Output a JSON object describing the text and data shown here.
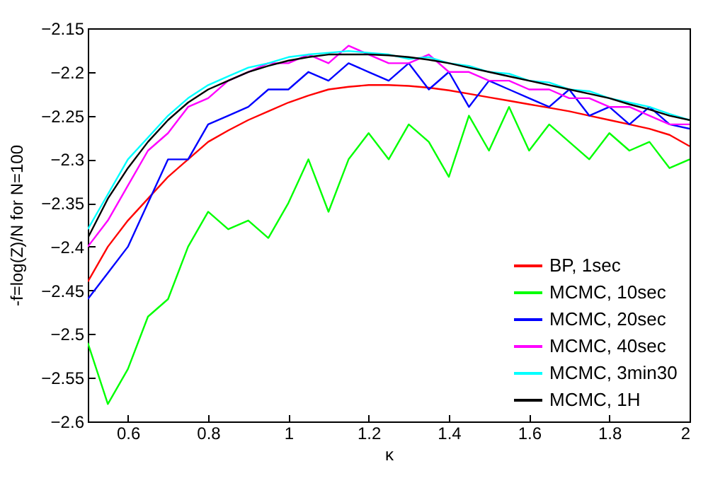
{
  "chart_data": {
    "type": "line",
    "xlabel": "κ",
    "ylabel": "-f=log(Z)/N for N=100",
    "x": [
      0.5,
      0.55,
      0.6,
      0.65,
      0.7,
      0.75,
      0.8,
      0.85,
      0.9,
      0.95,
      1.0,
      1.05,
      1.1,
      1.15,
      1.2,
      1.25,
      1.3,
      1.35,
      1.4,
      1.45,
      1.5,
      1.55,
      1.6,
      1.65,
      1.7,
      1.75,
      1.8,
      1.85,
      1.9,
      1.95,
      2.0
    ],
    "series": [
      {
        "name": "BP, 1sec",
        "color": "#ff0000",
        "values": [
          -2.44,
          -2.4,
          -2.37,
          -2.345,
          -2.32,
          -2.3,
          -2.28,
          -2.267,
          -2.255,
          -2.245,
          -2.235,
          -2.227,
          -2.22,
          -2.217,
          -2.215,
          -2.215,
          -2.216,
          -2.218,
          -2.221,
          -2.225,
          -2.229,
          -2.233,
          -2.237,
          -2.241,
          -2.245,
          -2.25,
          -2.255,
          -2.26,
          -2.265,
          -2.272,
          -2.285
        ]
      },
      {
        "name": "MCMC, 10sec",
        "color": "#00ff00",
        "values": [
          -2.51,
          -2.58,
          -2.54,
          -2.48,
          -2.46,
          -2.4,
          -2.36,
          -2.38,
          -2.37,
          -2.39,
          -2.35,
          -2.3,
          -2.36,
          -2.3,
          -2.27,
          -2.3,
          -2.26,
          -2.28,
          -2.32,
          -2.25,
          -2.29,
          -2.24,
          -2.29,
          -2.26,
          -2.28,
          -2.3,
          -2.27,
          -2.29,
          -2.28,
          -2.31,
          -2.3
        ]
      },
      {
        "name": "MCMC, 20sec",
        "color": "#0000ff",
        "values": [
          -2.46,
          -2.43,
          -2.4,
          -2.35,
          -2.3,
          -2.3,
          -2.26,
          -2.25,
          -2.24,
          -2.22,
          -2.22,
          -2.2,
          -2.21,
          -2.19,
          -2.2,
          -2.21,
          -2.19,
          -2.22,
          -2.2,
          -2.24,
          -2.21,
          -2.22,
          -2.23,
          -2.24,
          -2.22,
          -2.25,
          -2.24,
          -2.26,
          -2.24,
          -2.26,
          -2.265
        ]
      },
      {
        "name": "MCMC, 40sec",
        "color": "#ff00ff",
        "values": [
          -2.4,
          -2.37,
          -2.33,
          -2.29,
          -2.27,
          -2.24,
          -2.23,
          -2.21,
          -2.2,
          -2.19,
          -2.19,
          -2.18,
          -2.19,
          -2.17,
          -2.18,
          -2.19,
          -2.19,
          -2.18,
          -2.2,
          -2.2,
          -2.21,
          -2.21,
          -2.22,
          -2.22,
          -2.23,
          -2.23,
          -2.24,
          -2.24,
          -2.25,
          -2.26,
          -2.26
        ]
      },
      {
        "name": "MCMC, 3min30",
        "color": "#00ffff",
        "values": [
          -2.38,
          -2.34,
          -2.3,
          -2.275,
          -2.25,
          -2.23,
          -2.215,
          -2.205,
          -2.195,
          -2.19,
          -2.183,
          -2.18,
          -2.178,
          -2.176,
          -2.178,
          -2.18,
          -2.185,
          -2.183,
          -2.19,
          -2.193,
          -2.2,
          -2.202,
          -2.21,
          -2.212,
          -2.22,
          -2.222,
          -2.23,
          -2.235,
          -2.24,
          -2.248,
          -2.255
        ]
      },
      {
        "name": "MCMC, 1H",
        "color": "#000000",
        "values": [
          -2.39,
          -2.345,
          -2.31,
          -2.28,
          -2.255,
          -2.235,
          -2.22,
          -2.21,
          -2.2,
          -2.193,
          -2.187,
          -2.183,
          -2.18,
          -2.18,
          -2.18,
          -2.181,
          -2.183,
          -2.186,
          -2.19,
          -2.195,
          -2.2,
          -2.205,
          -2.21,
          -2.215,
          -2.22,
          -2.225,
          -2.23,
          -2.237,
          -2.243,
          -2.25,
          -2.255
        ]
      }
    ],
    "xlim": [
      0.5,
      2
    ],
    "xticks": [
      0.6,
      0.8,
      1,
      1.2,
      1.4,
      1.6,
      1.8,
      2
    ],
    "ylim": [
      -2.6,
      -2.15
    ],
    "yticks": [
      -2.6,
      -2.55,
      -2.5,
      -2.45,
      -2.4,
      -2.35,
      -2.3,
      -2.25,
      -2.2,
      -2.15
    ],
    "grid": false,
    "legend": "bottom right",
    "line_style": "solid",
    "marker": "none"
  }
}
